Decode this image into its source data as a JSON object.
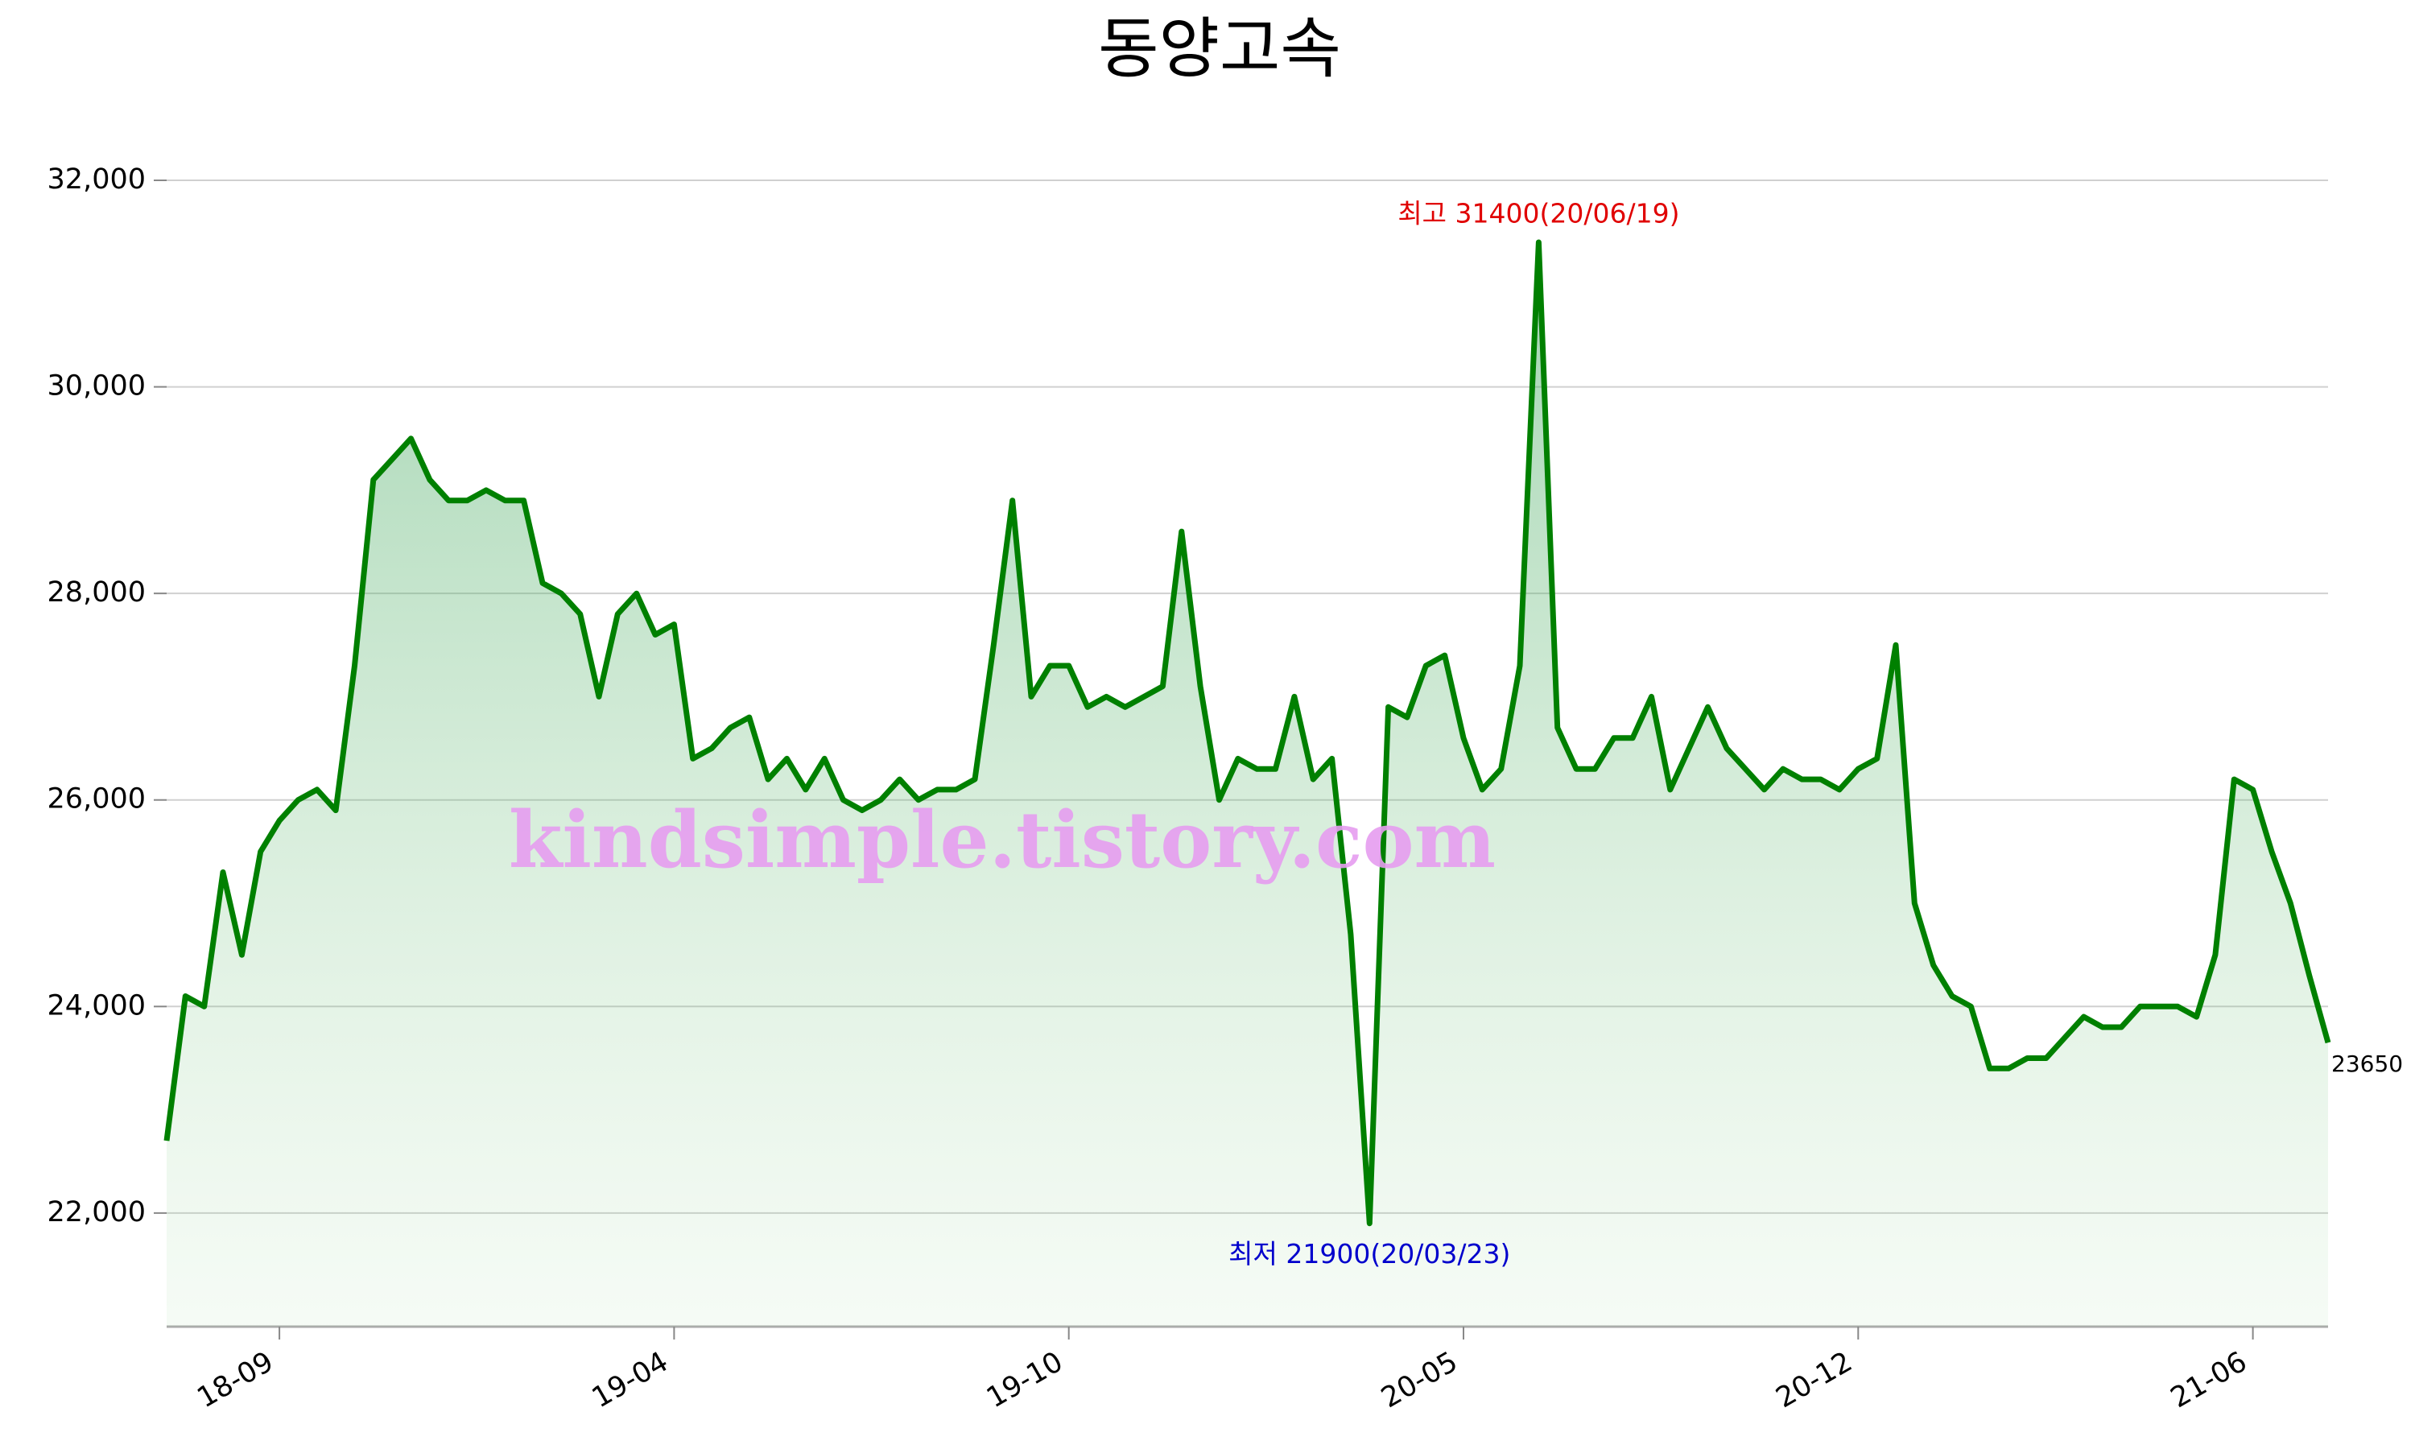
{
  "chart_data": {
    "type": "line",
    "title": "동양고속",
    "watermark": "kindsimple.tistory.com",
    "high_label": "최고 31400(20/06/19)",
    "high_color": "#e00000",
    "low_label": "최저 21900(20/03/23)",
    "low_color": "#0000cc",
    "color": "#008000",
    "grid": true,
    "ylim": [
      20900,
      32000
    ],
    "yticks": [
      {
        "value": 22000,
        "label": "22,000"
      },
      {
        "value": 24000,
        "label": "24,000"
      },
      {
        "value": 26000,
        "label": "26,000"
      },
      {
        "value": 28000,
        "label": "28,000"
      },
      {
        "value": 30000,
        "label": "30,000"
      },
      {
        "value": 32000,
        "label": "32,000"
      }
    ],
    "categories": [
      null,
      null,
      null,
      null,
      null,
      null,
      "18-09",
      null,
      null,
      null,
      null,
      null,
      null,
      null,
      null,
      null,
      null,
      null,
      null,
      null,
      null,
      null,
      null,
      null,
      null,
      null,
      null,
      "19-04",
      null,
      null,
      null,
      null,
      null,
      null,
      null,
      null,
      null,
      null,
      null,
      null,
      null,
      null,
      null,
      null,
      null,
      null,
      null,
      null,
      "19-10",
      null,
      null,
      null,
      null,
      null,
      null,
      null,
      null,
      null,
      null,
      null,
      null,
      null,
      null,
      null,
      null,
      null,
      null,
      null,
      null,
      "20-05",
      null,
      null,
      null,
      null,
      null,
      null,
      null,
      null,
      null,
      null,
      null,
      null,
      null,
      null,
      null,
      null,
      null,
      null,
      null,
      null,
      "20-12",
      null,
      null,
      null,
      null,
      null,
      null,
      null,
      null,
      null,
      null,
      null,
      null,
      null,
      null,
      null,
      null,
      null,
      null,
      null,
      null,
      "21-06",
      null,
      null,
      null,
      null
    ],
    "values": [
      22700,
      24100,
      24000,
      25300,
      24500,
      25500,
      25800,
      26000,
      26100,
      25900,
      27300,
      29100,
      29300,
      29500,
      29100,
      28900,
      28900,
      29000,
      28900,
      28900,
      28100,
      28000,
      27800,
      27000,
      27800,
      28000,
      27600,
      27700,
      26400,
      26500,
      26700,
      26800,
      26200,
      26400,
      26100,
      26400,
      26000,
      25900,
      26000,
      26200,
      26000,
      26100,
      26100,
      26200,
      27500,
      28900,
      27000,
      27300,
      27300,
      26900,
      27000,
      26900,
      27000,
      27100,
      28600,
      27100,
      26000,
      26400,
      26300,
      26300,
      27000,
      26200,
      26400,
      24700,
      21900,
      26900,
      26800,
      27300,
      27400,
      26600,
      26100,
      26300,
      27300,
      31400,
      26700,
      26300,
      26300,
      26600,
      26600,
      27000,
      26100,
      26500,
      26900,
      26500,
      26300,
      26100,
      26300,
      26200,
      26200,
      26100,
      26300,
      26400,
      27500,
      25000,
      24400,
      24100,
      24000,
      23400,
      23400,
      23500,
      23500,
      23700,
      23900,
      23800,
      23800,
      24000,
      24000,
      24000,
      23900,
      24500,
      26200,
      26100,
      25500,
      25000,
      24300,
      23650
    ]
  }
}
